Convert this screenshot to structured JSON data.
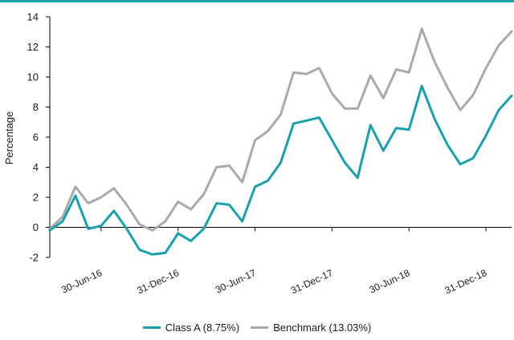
{
  "colors": {
    "class_a": "#1aa0a8",
    "benchmark": "#aaaaaa",
    "top_rule": "#1aa0a8"
  },
  "chart_data": {
    "type": "line",
    "title": "",
    "xlabel": "",
    "ylabel": "Percentage",
    "ylim": [
      -2,
      14
    ],
    "yticks": [
      -2,
      0,
      2,
      4,
      6,
      8,
      10,
      12,
      14
    ],
    "xtick_labels": [
      "30-Jun-16",
      "31-Dec-16",
      "30-Jun-17",
      "31-Dec-17",
      "30-Jun-18",
      "31-Dec-18"
    ],
    "xtick_indices": [
      4,
      10,
      16,
      22,
      28,
      34
    ],
    "grid": false,
    "legend_position": "bottom",
    "series": [
      {
        "name": "Class A (8.75%)",
        "values": [
          -0.2,
          0.4,
          2.1,
          -0.1,
          0.1,
          1.1,
          -0.1,
          -1.5,
          -1.8,
          -1.7,
          -0.4,
          -0.9,
          -0.1,
          1.6,
          1.5,
          0.4,
          2.7,
          3.1,
          4.3,
          6.9,
          7.1,
          7.3,
          5.8,
          4.3,
          3.3,
          6.8,
          5.1,
          6.6,
          6.5,
          9.4,
          7.2,
          5.5,
          4.2,
          4.6,
          6.1,
          7.8,
          8.75
        ]
      },
      {
        "name": "Benchmark (13.03%)",
        "values": [
          -0.1,
          0.7,
          2.7,
          1.6,
          2.0,
          2.6,
          1.5,
          0.2,
          -0.2,
          0.4,
          1.7,
          1.2,
          2.2,
          4.0,
          4.1,
          3.0,
          5.8,
          6.4,
          7.5,
          10.3,
          10.2,
          10.6,
          8.9,
          7.9,
          7.9,
          10.1,
          8.6,
          10.5,
          10.3,
          13.2,
          11.0,
          9.3,
          7.8,
          8.8,
          10.6,
          12.1,
          13.03
        ]
      }
    ]
  }
}
